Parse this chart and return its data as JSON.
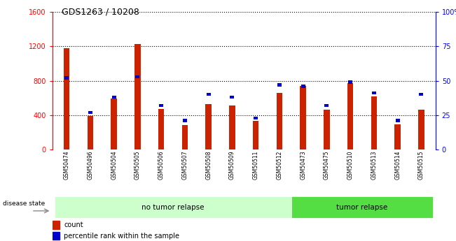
{
  "title": "GDS1263 / 10208",
  "samples": [
    "GSM50474",
    "GSM50496",
    "GSM50504",
    "GSM50505",
    "GSM50506",
    "GSM50507",
    "GSM50508",
    "GSM50509",
    "GSM50511",
    "GSM50512",
    "GSM50473",
    "GSM50475",
    "GSM50510",
    "GSM50513",
    "GSM50514",
    "GSM50515"
  ],
  "counts": [
    1175,
    390,
    590,
    1230,
    470,
    280,
    530,
    510,
    330,
    660,
    740,
    460,
    770,
    620,
    290,
    460
  ],
  "percentiles": [
    52,
    27,
    38,
    53,
    32,
    21,
    40,
    38,
    23,
    47,
    46,
    32,
    49,
    41,
    21,
    40
  ],
  "group_labels": [
    "no tumor relapse",
    "tumor relapse"
  ],
  "group_sizes": [
    10,
    6
  ],
  "ylim_left": [
    0,
    1600
  ],
  "ylim_right": [
    0,
    100
  ],
  "yticks_left": [
    0,
    400,
    800,
    1200,
    1600
  ],
  "yticks_right": [
    0,
    25,
    50,
    75,
    100
  ],
  "yticklabels_right": [
    "0",
    "25",
    "50",
    "75",
    "100%"
  ],
  "bar_color_red": "#cc2200",
  "bar_color_blue": "#0000cc",
  "group_color_light": "#ccffcc",
  "group_color_green": "#55dd44",
  "legend_count": "count",
  "legend_pct": "percentile rank within the sample",
  "disease_state_label": "disease state",
  "bar_width": 0.25,
  "pct_square_size": 0.18
}
